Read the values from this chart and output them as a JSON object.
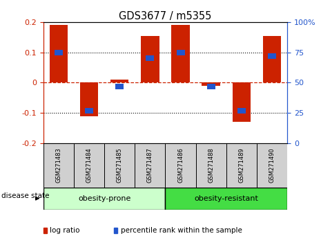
{
  "title": "GDS3677 / m5355",
  "samples": [
    "GSM271483",
    "GSM271484",
    "GSM271485",
    "GSM271487",
    "GSM271486",
    "GSM271488",
    "GSM271489",
    "GSM271490"
  ],
  "log_ratios": [
    0.19,
    -0.11,
    0.01,
    0.155,
    0.19,
    -0.01,
    -0.13,
    0.155
  ],
  "percentile_ranks": [
    75,
    27,
    47,
    70,
    75,
    47,
    27,
    72
  ],
  "ylim": [
    -0.2,
    0.2
  ],
  "yticks_left": [
    -0.2,
    -0.1,
    0,
    0.1,
    0.2
  ],
  "yticks_right": [
    0,
    25,
    50,
    75,
    100
  ],
  "dotted_lines": [
    -0.1,
    0.1
  ],
  "bar_color": "#cc2200",
  "blue_color": "#2255cc",
  "dashed_line_color": "#cc2200",
  "bg_color": "#ffffff",
  "label_color_left": "#cc2200",
  "label_color_right": "#2255cc",
  "group_label_prone": "obesity-prone",
  "group_label_resistant": "obesity-resistant",
  "group_prone_color": "#ccffcc",
  "group_resistant_color": "#44dd44",
  "legend_log": "log ratio",
  "legend_pct": "percentile rank within the sample",
  "disease_state_label": "disease state",
  "prone_count": 4,
  "resistant_count": 4
}
